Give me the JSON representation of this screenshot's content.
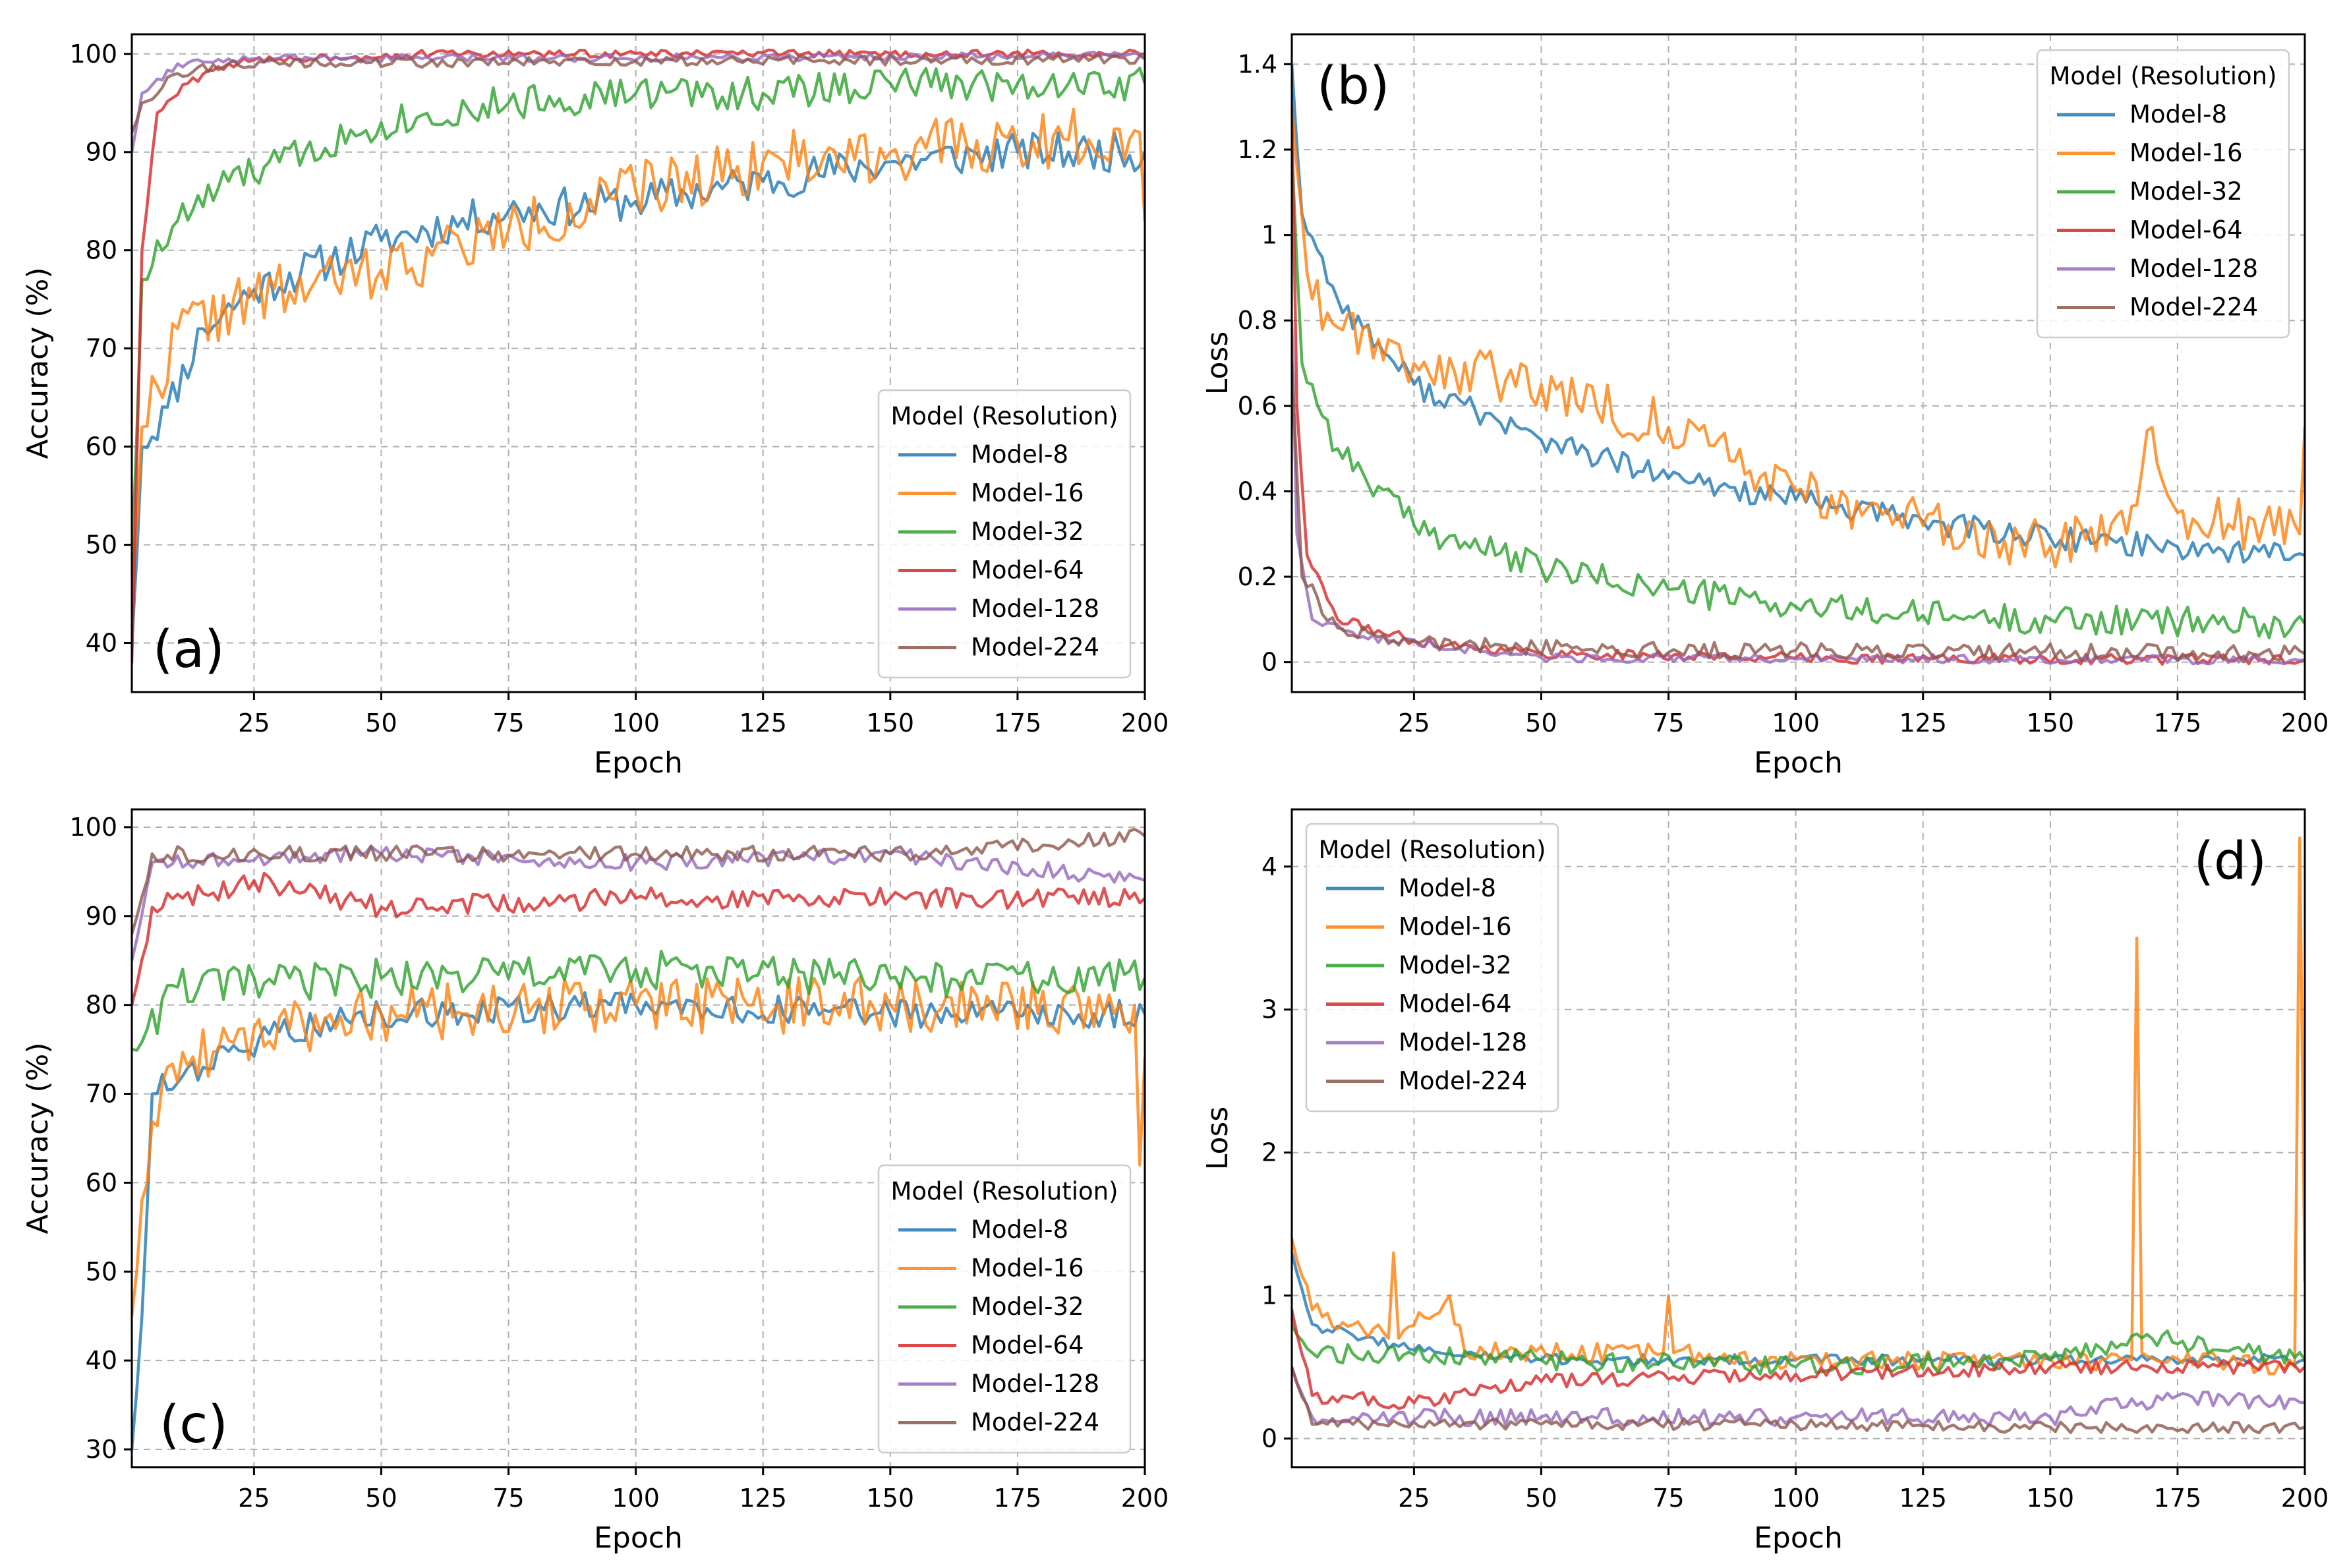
{
  "chart_data": [
    {
      "panel": "(a)",
      "type": "line",
      "xlabel": "Epoch",
      "ylabel": "Accuracy (%)",
      "xlim": [
        1,
        200
      ],
      "ylim": [
        35,
        102
      ],
      "xticks": [
        25,
        50,
        75,
        100,
        125,
        150,
        175,
        200
      ],
      "yticks": [
        40,
        50,
        60,
        70,
        80,
        90,
        100
      ],
      "grid": true,
      "legend": {
        "title": "Model (Resolution)",
        "placement": "lower-right"
      },
      "series": [
        {
          "name": "Model-8",
          "color": "#1f77b4",
          "keypoints": [
            [
              1,
              40
            ],
            [
              3,
              60
            ],
            [
              8,
              64
            ],
            [
              15,
              72
            ],
            [
              25,
              76
            ],
            [
              50,
              81
            ],
            [
              75,
              84
            ],
            [
              100,
              85
            ],
            [
              125,
              87
            ],
            [
              150,
              89
            ],
            [
              175,
              90
            ],
            [
              200,
              90
            ]
          ],
          "noise": 2.0,
          "seed": 11
        },
        {
          "name": "Model-16",
          "color": "#ff7f0e",
          "keypoints": [
            [
              1,
              45
            ],
            [
              3,
              62
            ],
            [
              10,
              72
            ],
            [
              25,
              75
            ],
            [
              50,
              78
            ],
            [
              75,
              82
            ],
            [
              100,
              86
            ],
            [
              125,
              89
            ],
            [
              150,
              90
            ],
            [
              175,
              91
            ],
            [
              199,
              92
            ],
            [
              200,
              83
            ]
          ],
          "noise": 3.0,
          "seed": 22
        },
        {
          "name": "Model-32",
          "color": "#2ca02c",
          "keypoints": [
            [
              1,
              48
            ],
            [
              3,
              77
            ],
            [
              10,
              83
            ],
            [
              20,
              87
            ],
            [
              30,
              89
            ],
            [
              50,
              93
            ],
            [
              75,
              95
            ],
            [
              100,
              96
            ],
            [
              125,
              96
            ],
            [
              150,
              97
            ],
            [
              175,
              97
            ],
            [
              200,
              97
            ]
          ],
          "noise": 1.8,
          "seed": 33
        },
        {
          "name": "Model-64",
          "color": "#d62728",
          "keypoints": [
            [
              1,
              38
            ],
            [
              3,
              80
            ],
            [
              6,
              94
            ],
            [
              12,
              97
            ],
            [
              20,
              99
            ],
            [
              30,
              99.5
            ],
            [
              60,
              100
            ],
            [
              200,
              100
            ]
          ],
          "noise": 0.4,
          "seed": 44
        },
        {
          "name": "Model-128",
          "color": "#9467bd",
          "keypoints": [
            [
              1,
              90
            ],
            [
              3,
              96
            ],
            [
              10,
              99
            ],
            [
              20,
              99.5
            ],
            [
              200,
              99.8
            ]
          ],
          "noise": 0.4,
          "seed": 55
        },
        {
          "name": "Model-224",
          "color": "#8c564b",
          "keypoints": [
            [
              1,
              92
            ],
            [
              3,
              95
            ],
            [
              10,
              98
            ],
            [
              20,
              99
            ],
            [
              200,
              99.5
            ]
          ],
          "noise": 0.5,
          "seed": 66
        }
      ]
    },
    {
      "panel": "(b)",
      "type": "line",
      "xlabel": "Epoch",
      "ylabel": "Loss",
      "xlim": [
        1,
        200
      ],
      "ylim": [
        -0.07,
        1.47
      ],
      "xticks": [
        25,
        50,
        75,
        100,
        125,
        150,
        175,
        200
      ],
      "yticks": [
        0.0,
        0.2,
        0.4,
        0.6,
        0.8,
        1.0,
        1.2,
        1.4
      ],
      "grid": true,
      "legend": {
        "title": "Model (Resolution)",
        "placement": "top-right"
      },
      "series": [
        {
          "name": "Model-8",
          "color": "#1f77b4",
          "keypoints": [
            [
              1,
              1.4
            ],
            [
              3,
              1.05
            ],
            [
              10,
              0.85
            ],
            [
              25,
              0.65
            ],
            [
              50,
              0.52
            ],
            [
              75,
              0.43
            ],
            [
              100,
              0.38
            ],
            [
              125,
              0.33
            ],
            [
              150,
              0.29
            ],
            [
              175,
              0.27
            ],
            [
              200,
              0.25
            ]
          ],
          "noise": 0.03,
          "seed": 77
        },
        {
          "name": "Model-16",
          "color": "#ff7f0e",
          "keypoints": [
            [
              1,
              1.3
            ],
            [
              5,
              0.85
            ],
            [
              25,
              0.7
            ],
            [
              50,
              0.65
            ],
            [
              75,
              0.55
            ],
            [
              100,
              0.4
            ],
            [
              125,
              0.32
            ],
            [
              150,
              0.27
            ],
            [
              165,
              0.3
            ],
            [
              170,
              0.55
            ],
            [
              175,
              0.35
            ],
            [
              199,
              0.3
            ],
            [
              200,
              0.55
            ]
          ],
          "noise": 0.06,
          "seed": 88
        },
        {
          "name": "Model-32",
          "color": "#2ca02c",
          "keypoints": [
            [
              1,
              1.2
            ],
            [
              3,
              0.7
            ],
            [
              10,
              0.5
            ],
            [
              25,
              0.32
            ],
            [
              50,
              0.22
            ],
            [
              75,
              0.17
            ],
            [
              100,
              0.13
            ],
            [
              125,
              0.11
            ],
            [
              150,
              0.1
            ],
            [
              200,
              0.09
            ]
          ],
          "noise": 0.035,
          "seed": 99
        },
        {
          "name": "Model-64",
          "color": "#d62728",
          "keypoints": [
            [
              1,
              1.3
            ],
            [
              2,
              0.6
            ],
            [
              4,
              0.25
            ],
            [
              10,
              0.1
            ],
            [
              25,
              0.05
            ],
            [
              50,
              0.02
            ],
            [
              100,
              0.01
            ],
            [
              200,
              0.005
            ]
          ],
          "noise": 0.012,
          "seed": 111
        },
        {
          "name": "Model-128",
          "color": "#9467bd",
          "keypoints": [
            [
              1,
              0.8
            ],
            [
              2,
              0.3
            ],
            [
              5,
              0.1
            ],
            [
              15,
              0.06
            ],
            [
              50,
              0.01
            ],
            [
              200,
              0.005
            ]
          ],
          "noise": 0.01,
          "seed": 122
        },
        {
          "name": "Model-224",
          "color": "#8c564b",
          "keypoints": [
            [
              1,
              0.7
            ],
            [
              3,
              0.2
            ],
            [
              10,
              0.08
            ],
            [
              25,
              0.05
            ],
            [
              60,
              0.03
            ],
            [
              200,
              0.02
            ]
          ],
          "noise": 0.02,
          "seed": 133
        }
      ]
    },
    {
      "panel": "(c)",
      "type": "line",
      "xlabel": "Epoch",
      "ylabel": "Accuracy (%)",
      "xlim": [
        1,
        200
      ],
      "ylim": [
        28,
        102
      ],
      "xticks": [
        25,
        50,
        75,
        100,
        125,
        150,
        175,
        200
      ],
      "yticks": [
        30,
        40,
        50,
        60,
        70,
        80,
        90,
        100
      ],
      "grid": true,
      "legend": {
        "title": "Model (Resolution)",
        "placement": "lower-right"
      },
      "series": [
        {
          "name": "Model-8",
          "color": "#1f77b4",
          "keypoints": [
            [
              1,
              30
            ],
            [
              3,
              45
            ],
            [
              5,
              70
            ],
            [
              15,
              73
            ],
            [
              30,
              77
            ],
            [
              50,
              79
            ],
            [
              100,
              80
            ],
            [
              150,
              79
            ],
            [
              200,
              79
            ]
          ],
          "noise": 1.6,
          "seed": 144
        },
        {
          "name": "Model-16",
          "color": "#ff7f0e",
          "keypoints": [
            [
              1,
              45
            ],
            [
              3,
              58
            ],
            [
              8,
              73
            ],
            [
              20,
              76
            ],
            [
              50,
              79
            ],
            [
              100,
              80
            ],
            [
              150,
              80
            ],
            [
              198,
              80
            ],
            [
              199,
              62
            ],
            [
              200,
              74
            ]
          ],
          "noise": 3.2,
          "seed": 155
        },
        {
          "name": "Model-32",
          "color": "#2ca02c",
          "keypoints": [
            [
              1,
              75
            ],
            [
              10,
              82
            ],
            [
              50,
              83
            ],
            [
              100,
              84
            ],
            [
              150,
              83
            ],
            [
              200,
              83
            ]
          ],
          "noise": 2.2,
          "seed": 166
        },
        {
          "name": "Model-64",
          "color": "#d62728",
          "keypoints": [
            [
              1,
              80
            ],
            [
              5,
              91
            ],
            [
              25,
              94
            ],
            [
              50,
              91
            ],
            [
              100,
              92
            ],
            [
              150,
              92
            ],
            [
              200,
              92
            ]
          ],
          "noise": 1.2,
          "seed": 177
        },
        {
          "name": "Model-128",
          "color": "#9467bd",
          "keypoints": [
            [
              1,
              85
            ],
            [
              5,
              96
            ],
            [
              50,
              97
            ],
            [
              100,
              96
            ],
            [
              150,
              97
            ],
            [
              200,
              94
            ]
          ],
          "noise": 0.9,
          "seed": 188
        },
        {
          "name": "Model-224",
          "color": "#8c564b",
          "keypoints": [
            [
              1,
              88
            ],
            [
              5,
              97
            ],
            [
              50,
              97
            ],
            [
              100,
              97
            ],
            [
              150,
              97
            ],
            [
              200,
              99
            ]
          ],
          "noise": 0.9,
          "seed": 199
        }
      ]
    },
    {
      "panel": "(d)",
      "type": "line",
      "xlabel": "Epoch",
      "ylabel": "Loss",
      "xlim": [
        1,
        200
      ],
      "ylim": [
        -0.2,
        4.4
      ],
      "xticks": [
        25,
        50,
        75,
        100,
        125,
        150,
        175,
        200
      ],
      "yticks": [
        0,
        1,
        2,
        3,
        4
      ],
      "grid": true,
      "legend": {
        "title": "Model (Resolution)",
        "placement": "top-left"
      },
      "series": [
        {
          "name": "Model-8",
          "color": "#1f77b4",
          "keypoints": [
            [
              1,
              1.3
            ],
            [
              5,
              0.8
            ],
            [
              15,
              0.7
            ],
            [
              30,
              0.6
            ],
            [
              50,
              0.55
            ],
            [
              100,
              0.55
            ],
            [
              150,
              0.55
            ],
            [
              200,
              0.55
            ]
          ],
          "noise": 0.04,
          "seed": 211
        },
        {
          "name": "Model-16",
          "color": "#ff7f0e",
          "keypoints": [
            [
              1,
              1.4
            ],
            [
              5,
              0.9
            ],
            [
              20,
              0.7
            ],
            [
              21,
              1.3
            ],
            [
              22,
              0.7
            ],
            [
              32,
              1.0
            ],
            [
              35,
              0.6
            ],
            [
              74,
              0.6
            ],
            [
              75,
              1.0
            ],
            [
              76,
              0.6
            ],
            [
              100,
              0.55
            ],
            [
              166,
              0.55
            ],
            [
              167,
              3.5
            ],
            [
              168,
              0.6
            ],
            [
              198,
              0.5
            ],
            [
              199,
              4.2
            ],
            [
              200,
              1.1
            ]
          ],
          "noise": 0.07,
          "seed": 222
        },
        {
          "name": "Model-32",
          "color": "#2ca02c",
          "keypoints": [
            [
              1,
              0.8
            ],
            [
              5,
              0.6
            ],
            [
              50,
              0.55
            ],
            [
              100,
              0.5
            ],
            [
              150,
              0.55
            ],
            [
              170,
              0.7
            ],
            [
              200,
              0.55
            ]
          ],
          "noise": 0.07,
          "seed": 233
        },
        {
          "name": "Model-64",
          "color": "#d62728",
          "keypoints": [
            [
              1,
              0.9
            ],
            [
              5,
              0.3
            ],
            [
              25,
              0.25
            ],
            [
              50,
              0.4
            ],
            [
              100,
              0.45
            ],
            [
              150,
              0.5
            ],
            [
              200,
              0.5
            ]
          ],
          "noise": 0.05,
          "seed": 244
        },
        {
          "name": "Model-128",
          "color": "#9467bd",
          "keypoints": [
            [
              1,
              0.5
            ],
            [
              5,
              0.15
            ],
            [
              50,
              0.15
            ],
            [
              100,
              0.15
            ],
            [
              150,
              0.15
            ],
            [
              175,
              0.3
            ],
            [
              200,
              0.25
            ]
          ],
          "noise": 0.06,
          "seed": 255
        },
        {
          "name": "Model-224",
          "color": "#8c564b",
          "keypoints": [
            [
              1,
              0.5
            ],
            [
              5,
              0.1
            ],
            [
              50,
              0.1
            ],
            [
              100,
              0.1
            ],
            [
              150,
              0.08
            ],
            [
              200,
              0.08
            ]
          ],
          "noise": 0.04,
          "seed": 266
        }
      ]
    }
  ]
}
